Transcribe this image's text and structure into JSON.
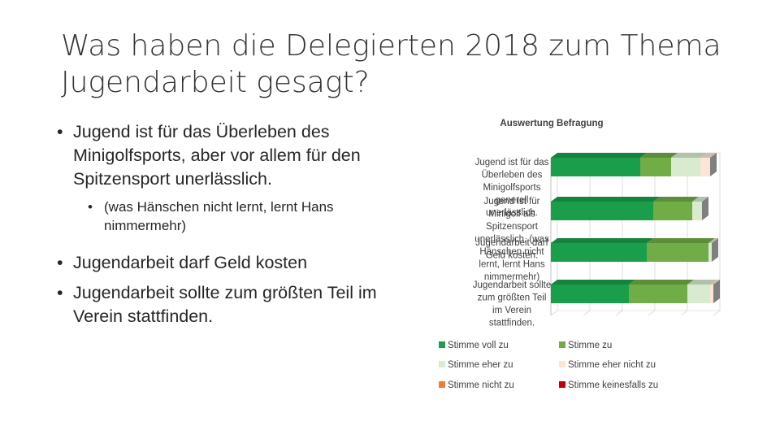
{
  "slide": {
    "title_line1": "Was haben die Delegierten 2018 zum Thema",
    "title_line2": "Jugendarbeit gesagt?",
    "bullets": [
      "Jugend ist für das Überleben des Minigolfsports, aber vor allem für den Spitzensport unerlässlich.",
      "(was Hänschen nicht lernt, lernt Hans nimmermehr)",
      "Jugendarbeit darf Geld kosten",
      "Jugendarbeit sollte zum größten Teil im Verein stattfinden."
    ]
  },
  "chart_data": {
    "type": "bar",
    "orientation": "horizontal",
    "stacked": true,
    "percent_stacked": true,
    "title": "Auswertung Befragung",
    "categories": [
      "Jugend ist für das Überleben des Minigolfsports generell unerlässlich.",
      "Jugend ist für Minigolf als Spitzensport unerlässlich. (was Hänschen nicht lernt, lernt Hans nimmermehr)",
      "Jugendarbeit darf Geld kosten.",
      "Jugendarbeit sollte zum größten Teil im Verein stattfinden."
    ],
    "category_label_lines": [
      [
        "Jugend ist für das",
        "Überleben des",
        "Minigolfsports",
        "generell",
        "unerlässlich."
      ],
      [
        "Jugend ist für",
        "Minigolf als",
        "Spitzensport",
        "unerlässlich. (was",
        "Hänschen nicht",
        "lernt, lernt Hans",
        "nimmermehr)"
      ],
      [
        "Jugendarbeit darf",
        "Geld kosten."
      ],
      [
        "Jugendarbeit sollte",
        "zum größten Teil",
        "im Verein",
        "stattfinden."
      ]
    ],
    "series": [
      {
        "name": "Stimme voll zu",
        "color": "#1a9e4b",
        "values": [
          55,
          63,
          59,
          48
        ]
      },
      {
        "name": "Stimme zu",
        "color": "#70ad47",
        "values": [
          19,
          24,
          38,
          36
        ]
      },
      {
        "name": "Stimme eher zu",
        "color": "#d8ebcf",
        "values": [
          18,
          6,
          2,
          14
        ]
      },
      {
        "name": "Stimme eher nicht zu",
        "color": "#fbe5d6",
        "values": [
          6,
          0,
          0,
          2
        ]
      },
      {
        "name": "Stimme nicht zu",
        "color": "#ed7d31",
        "values": [
          0,
          0,
          0,
          0
        ]
      },
      {
        "name": "Stimme keinesfalls zu",
        "color": "#c00000",
        "values": [
          0,
          0,
          0,
          0
        ]
      }
    ],
    "xlim": [
      0,
      100
    ],
    "grid": true,
    "legend_position": "bottom"
  }
}
